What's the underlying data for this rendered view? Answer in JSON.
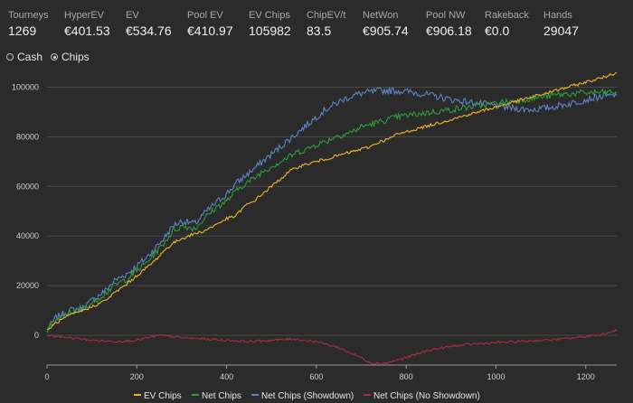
{
  "stats": [
    {
      "label": "Tourneys",
      "value": "1269"
    },
    {
      "label": "HyperEV",
      "value": "€401.53"
    },
    {
      "label": "EV",
      "value": "€534.76"
    },
    {
      "label": "Pool EV",
      "value": "€410.97"
    },
    {
      "label": "EV Chips",
      "value": "105982"
    },
    {
      "label": "ChipEV/t",
      "value": "83.5"
    },
    {
      "label": "NetWon",
      "value": "€905.74"
    },
    {
      "label": "Pool NW",
      "value": "€906.18"
    },
    {
      "label": "Rakeback",
      "value": "€0.0"
    },
    {
      "label": "Hands",
      "value": "29047"
    }
  ],
  "modes": {
    "cash": {
      "label": "Cash",
      "selected": false
    },
    "chips": {
      "label": "Chips",
      "selected": true
    }
  },
  "chart_data": {
    "type": "line",
    "xlim": [
      0,
      1269
    ],
    "ylim": [
      -12000,
      106000
    ],
    "x_ticks": [
      0,
      200,
      400,
      600,
      800,
      1000,
      1200
    ],
    "y_ticks": [
      0,
      20000,
      40000,
      60000,
      80000,
      100000
    ],
    "grid": "horizontal",
    "legend_position": "bottom",
    "series": [
      {
        "name": "EV Chips",
        "color": "#f0b429",
        "points": [
          [
            0,
            2000
          ],
          [
            20,
            5000
          ],
          [
            50,
            8000
          ],
          [
            80,
            10000
          ],
          [
            100,
            11500
          ],
          [
            130,
            14000
          ],
          [
            150,
            17000
          ],
          [
            180,
            21000
          ],
          [
            200,
            24000
          ],
          [
            220,
            27000
          ],
          [
            240,
            30000
          ],
          [
            260,
            34000
          ],
          [
            280,
            37000
          ],
          [
            300,
            39000
          ],
          [
            330,
            41000
          ],
          [
            350,
            42000
          ],
          [
            380,
            45000
          ],
          [
            400,
            47000
          ],
          [
            420,
            48000
          ],
          [
            440,
            52000
          ],
          [
            460,
            54000
          ],
          [
            480,
            57000
          ],
          [
            500,
            60000
          ],
          [
            520,
            63000
          ],
          [
            540,
            66000
          ],
          [
            560,
            68000
          ],
          [
            580,
            69000
          ],
          [
            600,
            70000
          ],
          [
            620,
            71000
          ],
          [
            640,
            72000
          ],
          [
            660,
            73000
          ],
          [
            680,
            74000
          ],
          [
            700,
            75000
          ],
          [
            720,
            76000
          ],
          [
            740,
            78000
          ],
          [
            760,
            79000
          ],
          [
            780,
            81000
          ],
          [
            800,
            82000
          ],
          [
            820,
            83000
          ],
          [
            840,
            84000
          ],
          [
            860,
            85000
          ],
          [
            880,
            86000
          ],
          [
            900,
            87000
          ],
          [
            920,
            88000
          ],
          [
            940,
            89000
          ],
          [
            960,
            90000
          ],
          [
            980,
            91000
          ],
          [
            1000,
            92000
          ],
          [
            1020,
            93000
          ],
          [
            1040,
            94000
          ],
          [
            1060,
            95000
          ],
          [
            1080,
            96000
          ],
          [
            1100,
            97000
          ],
          [
            1120,
            98000
          ],
          [
            1140,
            99000
          ],
          [
            1160,
            100000
          ],
          [
            1180,
            101000
          ],
          [
            1200,
            102000
          ],
          [
            1220,
            103000
          ],
          [
            1240,
            104000
          ],
          [
            1269,
            105982
          ]
        ]
      },
      {
        "name": "Net Chips",
        "color": "#2e9b3a",
        "points": [
          [
            0,
            2000
          ],
          [
            20,
            6000
          ],
          [
            50,
            9000
          ],
          [
            80,
            10500
          ],
          [
            100,
            13000
          ],
          [
            130,
            17000
          ],
          [
            150,
            20000
          ],
          [
            180,
            23000
          ],
          [
            200,
            26000
          ],
          [
            220,
            29000
          ],
          [
            240,
            33000
          ],
          [
            260,
            37000
          ],
          [
            280,
            42000
          ],
          [
            300,
            44000
          ],
          [
            330,
            43000
          ],
          [
            350,
            47000
          ],
          [
            380,
            52000
          ],
          [
            400,
            54000
          ],
          [
            420,
            58000
          ],
          [
            440,
            61000
          ],
          [
            460,
            63000
          ],
          [
            480,
            66000
          ],
          [
            500,
            68000
          ],
          [
            520,
            70000
          ],
          [
            540,
            72000
          ],
          [
            560,
            74000
          ],
          [
            580,
            75000
          ],
          [
            600,
            77000
          ],
          [
            620,
            78000
          ],
          [
            640,
            80000
          ],
          [
            660,
            81000
          ],
          [
            680,
            82000
          ],
          [
            700,
            84000
          ],
          [
            720,
            85000
          ],
          [
            740,
            86000
          ],
          [
            760,
            87000
          ],
          [
            780,
            88000
          ],
          [
            800,
            88500
          ],
          [
            820,
            89000
          ],
          [
            840,
            89500
          ],
          [
            860,
            90000
          ],
          [
            880,
            90500
          ],
          [
            900,
            91000
          ],
          [
            920,
            91500
          ],
          [
            940,
            92000
          ],
          [
            960,
            92500
          ],
          [
            980,
            93000
          ],
          [
            1000,
            93500
          ],
          [
            1020,
            94000
          ],
          [
            1040,
            94500
          ],
          [
            1060,
            95000
          ],
          [
            1080,
            95500
          ],
          [
            1100,
            96000
          ],
          [
            1120,
            96500
          ],
          [
            1140,
            97000
          ],
          [
            1160,
            97300
          ],
          [
            1180,
            97500
          ],
          [
            1200,
            97700
          ],
          [
            1220,
            97800
          ],
          [
            1240,
            97900
          ],
          [
            1269,
            98000
          ]
        ]
      },
      {
        "name": "Net Chips (Showdown)",
        "color": "#5a86c4",
        "points": [
          [
            0,
            2000
          ],
          [
            20,
            7000
          ],
          [
            50,
            10000
          ],
          [
            80,
            11000
          ],
          [
            100,
            14000
          ],
          [
            130,
            18000
          ],
          [
            150,
            22000
          ],
          [
            180,
            25000
          ],
          [
            200,
            28000
          ],
          [
            220,
            31000
          ],
          [
            240,
            35000
          ],
          [
            260,
            39000
          ],
          [
            280,
            44000
          ],
          [
            300,
            46000
          ],
          [
            330,
            45000
          ],
          [
            350,
            49000
          ],
          [
            380,
            54000
          ],
          [
            400,
            57000
          ],
          [
            420,
            61000
          ],
          [
            440,
            64000
          ],
          [
            460,
            67000
          ],
          [
            480,
            70000
          ],
          [
            500,
            73000
          ],
          [
            520,
            76000
          ],
          [
            540,
            79000
          ],
          [
            560,
            82000
          ],
          [
            580,
            85000
          ],
          [
            600,
            88000
          ],
          [
            620,
            91000
          ],
          [
            640,
            93000
          ],
          [
            660,
            95000
          ],
          [
            680,
            96500
          ],
          [
            700,
            97500
          ],
          [
            720,
            98000
          ],
          [
            740,
            98500
          ],
          [
            760,
            98700
          ],
          [
            780,
            98600
          ],
          [
            800,
            98200
          ],
          [
            820,
            97800
          ],
          [
            840,
            97200
          ],
          [
            860,
            96500
          ],
          [
            880,
            95800
          ],
          [
            900,
            95000
          ],
          [
            920,
            94500
          ],
          [
            940,
            94000
          ],
          [
            960,
            93500
          ],
          [
            980,
            93000
          ],
          [
            1000,
            92500
          ],
          [
            1020,
            92000
          ],
          [
            1040,
            91500
          ],
          [
            1060,
            91200
          ],
          [
            1080,
            91000
          ],
          [
            1100,
            91300
          ],
          [
            1120,
            91800
          ],
          [
            1140,
            92500
          ],
          [
            1160,
            93200
          ],
          [
            1180,
            94000
          ],
          [
            1200,
            95000
          ],
          [
            1220,
            95800
          ],
          [
            1240,
            96300
          ],
          [
            1269,
            96600
          ]
        ]
      },
      {
        "name": "Net Chips (No Showdown)",
        "color": "#b02a42",
        "points": [
          [
            0,
            0
          ],
          [
            50,
            -1000
          ],
          [
            100,
            -2000
          ],
          [
            150,
            -2500
          ],
          [
            200,
            -2000
          ],
          [
            250,
            0
          ],
          [
            300,
            -1000
          ],
          [
            350,
            -1500
          ],
          [
            400,
            -2000
          ],
          [
            450,
            -2500
          ],
          [
            500,
            -2000
          ],
          [
            550,
            -1500
          ],
          [
            600,
            -2500
          ],
          [
            650,
            -5000
          ],
          [
            700,
            -9000
          ],
          [
            720,
            -11000
          ],
          [
            740,
            -11500
          ],
          [
            760,
            -11000
          ],
          [
            780,
            -10000
          ],
          [
            800,
            -9000
          ],
          [
            850,
            -6000
          ],
          [
            900,
            -4500
          ],
          [
            950,
            -3500
          ],
          [
            1000,
            -3000
          ],
          [
            1050,
            -2500
          ],
          [
            1100,
            -2000
          ],
          [
            1150,
            -1500
          ],
          [
            1200,
            -500
          ],
          [
            1240,
            500
          ],
          [
            1269,
            2000
          ]
        ]
      }
    ]
  }
}
